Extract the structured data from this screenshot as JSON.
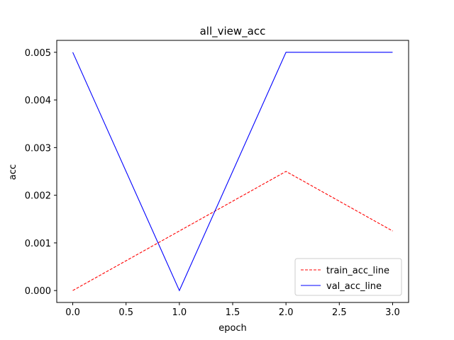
{
  "chart_data": {
    "type": "line",
    "title": "all_view_acc",
    "xlabel": "epoch",
    "ylabel": "acc",
    "xlim": [
      -0.15,
      3.15
    ],
    "ylim": [
      -0.00025,
      0.00525
    ],
    "x_ticks": [
      0.0,
      0.5,
      1.0,
      1.5,
      2.0,
      2.5,
      3.0
    ],
    "x_tick_labels": [
      "0.0",
      "0.5",
      "1.0",
      "1.5",
      "2.0",
      "2.5",
      "3.0"
    ],
    "y_ticks": [
      0.0,
      0.001,
      0.002,
      0.003,
      0.004,
      0.005
    ],
    "y_tick_labels": [
      "0.000",
      "0.001",
      "0.002",
      "0.003",
      "0.004",
      "0.005"
    ],
    "grid": false,
    "legend_position": "lower-right",
    "series": [
      {
        "name": "train_acc_line",
        "color": "#ff0000",
        "style": "dashed",
        "x": [
          0,
          1,
          2,
          3
        ],
        "y": [
          0.0,
          0.00125,
          0.0025,
          0.00125
        ]
      },
      {
        "name": "val_acc_line",
        "color": "#0000ff",
        "style": "solid",
        "x": [
          0,
          1,
          2,
          3
        ],
        "y": [
          0.005,
          0.0,
          0.005,
          0.005
        ]
      }
    ]
  }
}
